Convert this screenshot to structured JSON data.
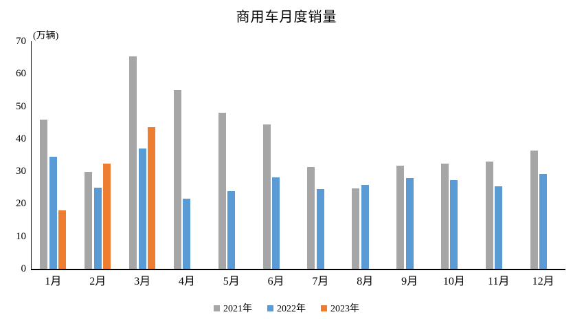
{
  "chart_data": {
    "type": "bar",
    "title": "商用车月度销量",
    "unit_label": "(万辆)",
    "xlabel": "",
    "ylabel": "万辆",
    "categories": [
      "1月",
      "2月",
      "3月",
      "4月",
      "5月",
      "6月",
      "7月",
      "8月",
      "9月",
      "10月",
      "11月",
      "12月"
    ],
    "series": [
      {
        "name": "2021年",
        "color": "#A6A6A6",
        "values": [
          45.9,
          29.8,
          65.3,
          55.0,
          48.0,
          44.5,
          31.2,
          24.8,
          31.7,
          32.4,
          32.9,
          36.3
        ]
      },
      {
        "name": "2022年",
        "color": "#5B9BD5",
        "values": [
          34.5,
          25.0,
          37.0,
          21.6,
          24.0,
          28.1,
          24.5,
          25.9,
          27.9,
          27.3,
          25.4,
          29.2
        ]
      },
      {
        "name": "2023年",
        "color": "#ED7D31",
        "values": [
          18.0,
          32.3,
          43.5,
          null,
          null,
          null,
          null,
          null,
          null,
          null,
          null,
          null
        ]
      }
    ],
    "ylim": [
      0,
      70
    ],
    "yticks": [
      0,
      10,
      20,
      30,
      40,
      50,
      60,
      70
    ],
    "grid": false,
    "legend_position": "bottom"
  }
}
